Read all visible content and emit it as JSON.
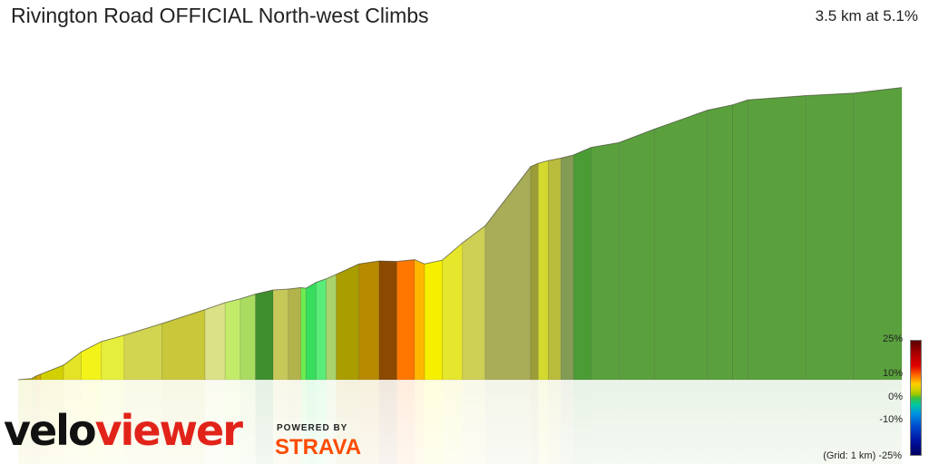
{
  "header": {
    "title": "Rivington Road OFFICIAL North-west Climbs",
    "summary": "3.5 km at 5.1%"
  },
  "branding": {
    "logo_part1": "velo",
    "logo_part2": "viewer",
    "powered_by": "POWERED BY",
    "strava": "STRAVA"
  },
  "legend": {
    "labels": [
      "25%",
      "10%",
      "0%",
      "-10%"
    ],
    "bottom_label": "(Grid: 1 km) -25%"
  },
  "colors": {
    "brand_red": "#e2231a",
    "strava_orange": "#fc4c02"
  },
  "chart_data": {
    "type": "area",
    "title": "Rivington Road OFFICIAL North-west Climbs",
    "x_unit": "km",
    "distance_km": 3.5,
    "avg_gradient_pct": 5.1,
    "grid": "1 km",
    "color_scale_range_pct": [
      -25,
      25
    ],
    "profile_km": [
      0.0,
      0.054,
      0.07,
      0.09,
      0.18,
      0.25,
      0.33,
      0.42,
      0.57,
      0.74,
      0.82,
      0.88,
      0.94,
      1.01,
      1.07,
      1.12,
      1.14,
      1.18,
      1.22,
      1.26,
      1.35,
      1.43,
      1.5,
      1.57,
      1.61,
      1.68,
      1.76,
      1.85,
      2.03,
      2.06,
      2.1,
      2.15,
      2.2,
      2.27,
      2.38,
      2.52,
      2.73,
      2.83,
      2.89,
      3.12,
      3.31,
      3.5
    ],
    "elevation_rel": [
      0.0,
      0.005,
      0.016,
      0.025,
      0.065,
      0.124,
      0.17,
      0.198,
      0.25,
      0.312,
      0.343,
      0.36,
      0.381,
      0.399,
      0.403,
      0.41,
      0.407,
      0.433,
      0.449,
      0.469,
      0.515,
      0.528,
      0.526,
      0.534,
      0.515,
      0.532,
      0.609,
      0.685,
      0.948,
      0.963,
      0.975,
      0.986,
      1.0,
      1.034,
      1.055,
      1.115,
      1.199,
      1.223,
      1.245,
      1.264,
      1.275,
      1.3
    ],
    "segment_colors": [
      "#c8c000",
      "#b5ad00",
      "#d1a900",
      "#d2d000",
      "#e4e326",
      "#f3f31a",
      "#e6ee3d",
      "#d2d54f",
      "#c8c83a",
      "#dbe187",
      "#c3eb6a",
      "#aadc62",
      "#3f8f2f",
      "#c7c85a",
      "#b2b44b",
      "#6cec4f",
      "#37dd5c",
      "#59ec78",
      "#a9d36d",
      "#aa9d00",
      "#b88a00",
      "#8b4a00",
      "#ff7700",
      "#ffb800",
      "#f5f000",
      "#e6e62c",
      "#cdd055",
      "#a9ad58",
      "#9b9d38",
      "#d4d92f",
      "#b9bc3d",
      "#839c55",
      "#4a9c35",
      "#5aa13e"
    ]
  }
}
